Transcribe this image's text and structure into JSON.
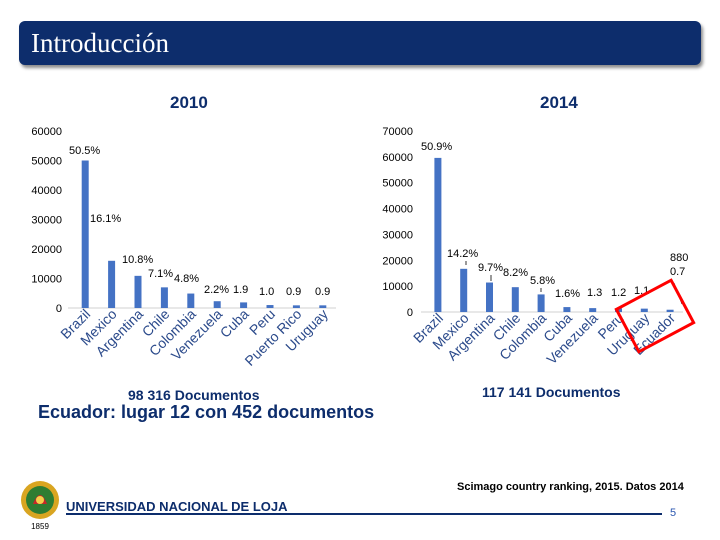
{
  "header": {
    "title": "Introducción"
  },
  "chart_data": [
    {
      "type": "bar",
      "title": "2010",
      "categories": [
        "Brazil",
        "Mexico",
        "Argentina",
        "Chile",
        "Colombia",
        "Venezuela",
        "Cuba",
        "Peru",
        "Puerto Rico",
        "Uruguay"
      ],
      "values": [
        50000,
        16000,
        10900,
        7000,
        4900,
        2300,
        1900,
        1000,
        900,
        900
      ],
      "data_labels": [
        "50.5%",
        "16.1%",
        "10.8%",
        "7.1%",
        "4.8%",
        "2.2%",
        "1.9",
        "1.0",
        "0.9",
        "0.9"
      ],
      "y_ticks": [
        "0",
        "10000",
        "20000",
        "30000",
        "40000",
        "50000",
        "60000"
      ],
      "ylim": [
        0,
        60000
      ],
      "total_label": "98 316 Documentos"
    },
    {
      "type": "bar",
      "title": "2014",
      "categories": [
        "Brazil",
        "Mexico",
        "Argentina",
        "Chile",
        "Colombia",
        "Cuba",
        "Venezuela",
        "Peru",
        "Uruguay",
        "Ecuador"
      ],
      "values": [
        59600,
        16700,
        11400,
        9600,
        6800,
        1900,
        1500,
        1400,
        1300,
        880
      ],
      "data_labels": [
        "50.9%",
        "14.2%",
        "9.7%",
        "8.2%",
        "5.8%",
        "1.6%",
        "1.3",
        "1.2",
        "1.1",
        "880\n0.7"
      ],
      "y_ticks": [
        "0",
        "10000",
        "20000",
        "30000",
        "40000",
        "50000",
        "60000",
        "70000"
      ],
      "ylim": [
        0,
        70000
      ],
      "highlight": "Ecuador",
      "total_label": "117 141 Documentos"
    }
  ],
  "ecuador_summary": {
    "country": "Ecuador",
    "text": ": lugar 12 con 452 documentos"
  },
  "source": "Scimago country ranking, 2015. Datos 2014",
  "footer": {
    "university": "UNIVERSIDAD NACIONAL DE LOJA",
    "logo_year": "1859",
    "page": "5"
  },
  "colors": {
    "navy": "#0d2d6c",
    "bar": "#4472c4",
    "highlight": "#ff0000"
  }
}
